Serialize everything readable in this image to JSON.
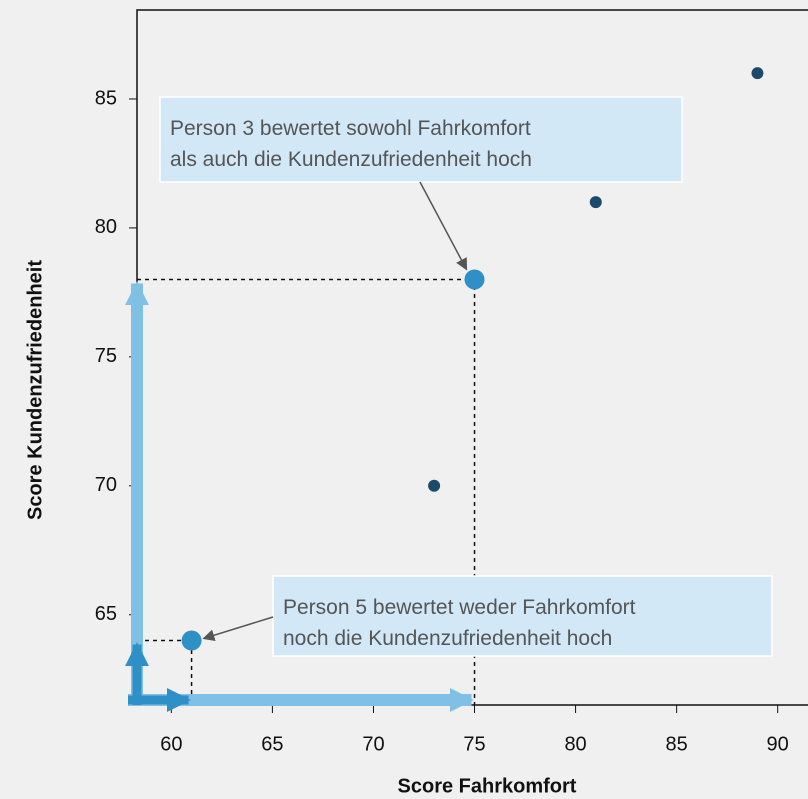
{
  "chart_data": {
    "type": "scatter",
    "xlabel": "Score Fahrkomfort",
    "ylabel": "Score Kundenzufriedenheit",
    "x": [
      61,
      73,
      75,
      81,
      89
    ],
    "values": [
      64,
      70,
      78,
      81,
      86
    ],
    "color": "#1b4a6b",
    "highlight_color": "#2f90c8",
    "highlight": [
      0,
      2
    ],
    "xlim": [
      58.3,
      91.5
    ],
    "xticks": [
      60,
      65,
      70,
      75,
      80,
      85,
      90
    ],
    "ylim": [
      61.5,
      88.45
    ],
    "yticks": [
      65,
      70,
      75,
      80,
      85
    ],
    "annotations": [
      {
        "point": 2,
        "lines": [
          "Person 3 bewertet sowohl Fahrkomfort",
          "als auch die Kundenzufriedenheit hoch"
        ]
      },
      {
        "point": 0,
        "lines": [
          "Person 5 bewertet weder Fahrkomfort",
          "noch die Kundenzufriedenheit hoch"
        ]
      }
    ]
  }
}
